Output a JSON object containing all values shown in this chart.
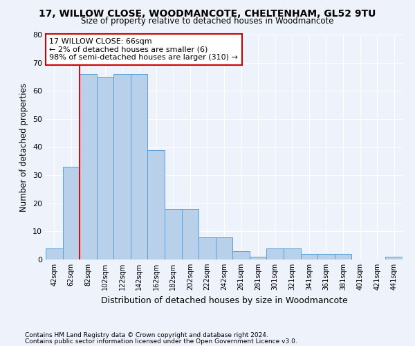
{
  "title": "17, WILLOW CLOSE, WOODMANCOTE, CHELTENHAM, GL52 9TU",
  "subtitle": "Size of property relative to detached houses in Woodmancote",
  "xlabel": "Distribution of detached houses by size in Woodmancote",
  "ylabel": "Number of detached properties",
  "footnote1": "Contains HM Land Registry data © Crown copyright and database right 2024.",
  "footnote2": "Contains public sector information licensed under the Open Government Licence v3.0.",
  "bar_labels": [
    "42sqm",
    "62sqm",
    "82sqm",
    "102sqm",
    "122sqm",
    "142sqm",
    "162sqm",
    "182sqm",
    "202sqm",
    "222sqm",
    "242sqm",
    "261sqm",
    "281sqm",
    "301sqm",
    "321sqm",
    "341sqm",
    "361sqm",
    "381sqm",
    "401sqm",
    "421sqm",
    "441sqm"
  ],
  "bar_values": [
    4,
    33,
    66,
    65,
    66,
    66,
    39,
    18,
    18,
    8,
    8,
    3,
    1,
    4,
    4,
    2,
    2,
    2,
    0,
    0,
    1
  ],
  "bar_color": "#b8d0ea",
  "bar_edge_color": "#5a9fd4",
  "ylim": [
    0,
    80
  ],
  "yticks": [
    0,
    10,
    20,
    30,
    40,
    50,
    60,
    70,
    80
  ],
  "property_label": "17 WILLOW CLOSE: 66sqm",
  "annotation_line1": "← 2% of detached houses are smaller (6)",
  "annotation_line2": "98% of semi-detached houses are larger (310) →",
  "red_line_x": 1.5,
  "background_color": "#eef2fa",
  "grid_color": "#ffffff",
  "annotation_box_color": "#ffffff",
  "annotation_box_edge_color": "#cc0000"
}
